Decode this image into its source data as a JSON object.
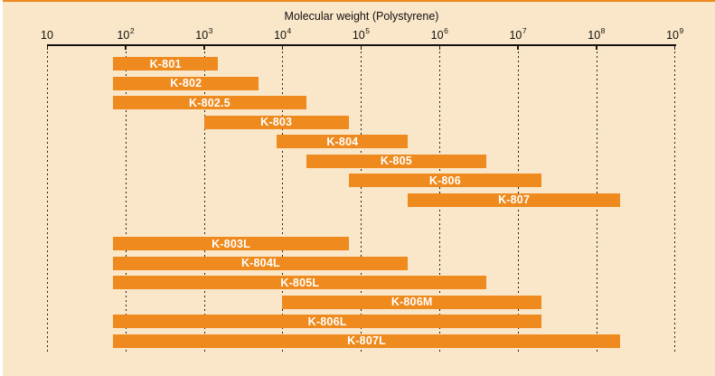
{
  "chart_data": {
    "type": "bar",
    "variant": "horizontal-range-bars-log-scale",
    "title": "Molecular weight (Polystyrene)",
    "x_axis": {
      "scale": "log",
      "min": 10,
      "max": 1000000000,
      "tick_base": "10",
      "tick_exponents": [
        1,
        2,
        3,
        4,
        5,
        6,
        7,
        8,
        9
      ]
    },
    "grid": "dashed-vertical-at-each-decade",
    "legend": null,
    "bars": [
      {
        "label": "K-801",
        "mw_min": 70,
        "mw_max": 1500,
        "group": "upper",
        "row": 0
      },
      {
        "label": "K-802",
        "mw_min": 70,
        "mw_max": 5000,
        "group": "upper",
        "row": 1
      },
      {
        "label": "K-802.5",
        "mw_min": 70,
        "mw_max": 20000,
        "group": "upper",
        "row": 2
      },
      {
        "label": "K-803",
        "mw_min": 1000,
        "mw_max": 70000,
        "group": "upper",
        "row": 3
      },
      {
        "label": "K-804",
        "mw_min": 8500,
        "mw_max": 400000,
        "group": "upper",
        "row": 4
      },
      {
        "label": "K-805",
        "mw_min": 20000,
        "mw_max": 4000000,
        "group": "upper",
        "row": 5
      },
      {
        "label": "K-806",
        "mw_min": 70000,
        "mw_max": 20000000,
        "group": "upper",
        "row": 6
      },
      {
        "label": "K-807",
        "mw_min": 400000,
        "mw_max": 200000000,
        "group": "upper",
        "row": 7
      },
      {
        "label": "K-803L",
        "mw_min": 70,
        "mw_max": 70000,
        "group": "lower",
        "row": 0
      },
      {
        "label": "K-804L",
        "mw_min": 70,
        "mw_max": 400000,
        "group": "lower",
        "row": 1
      },
      {
        "label": "K-805L",
        "mw_min": 70,
        "mw_max": 4000000,
        "group": "lower",
        "row": 2
      },
      {
        "label": "K-806M",
        "mw_min": 10000,
        "mw_max": 20000000,
        "group": "lower",
        "row": 3
      },
      {
        "label": "K-806L",
        "mw_min": 70,
        "mw_max": 20000000,
        "group": "lower",
        "row": 4
      },
      {
        "label": "K-807L",
        "mw_min": 70,
        "mw_max": 200000000,
        "group": "lower",
        "row": 5
      }
    ],
    "colors": {
      "background": "#FAE6C8",
      "bar": "#EE8A1E",
      "bar_label_text": "#FFFFFF",
      "axis_text": "#111111",
      "axis_line": "#111111",
      "gridline": "#222222",
      "top_border": "#EE8A1E"
    }
  }
}
